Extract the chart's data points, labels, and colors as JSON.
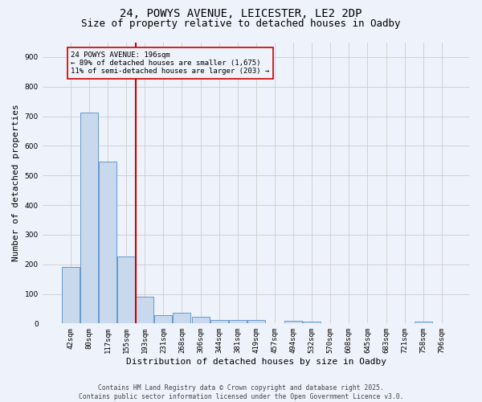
{
  "title_line1": "24, POWYS AVENUE, LEICESTER, LE2 2DP",
  "title_line2": "Size of property relative to detached houses in Oadby",
  "xlabel": "Distribution of detached houses by size in Oadby",
  "ylabel": "Number of detached properties",
  "bar_labels": [
    "42sqm",
    "80sqm",
    "117sqm",
    "155sqm",
    "193sqm",
    "231sqm",
    "268sqm",
    "306sqm",
    "344sqm",
    "381sqm",
    "419sqm",
    "457sqm",
    "494sqm",
    "532sqm",
    "570sqm",
    "608sqm",
    "645sqm",
    "683sqm",
    "721sqm",
    "758sqm",
    "796sqm"
  ],
  "bar_values": [
    190,
    713,
    548,
    225,
    90,
    27,
    36,
    22,
    12,
    11,
    11,
    2,
    9,
    6,
    2,
    0,
    0,
    0,
    0,
    5,
    0
  ],
  "bar_color": "#c9d9ed",
  "bar_edge_color": "#6699cc",
  "grid_color": "#cccccc",
  "vline_x": 3.5,
  "vline_color": "#cc0000",
  "annotation_text": "24 POWYS AVENUE: 196sqm\n← 89% of detached houses are smaller (1,675)\n11% of semi-detached houses are larger (203) →",
  "annotation_box_color": "#cc0000",
  "ylim": [
    0,
    950
  ],
  "yticks": [
    0,
    100,
    200,
    300,
    400,
    500,
    600,
    700,
    800,
    900
  ],
  "background_color": "#eef2fa",
  "footer_text": "Contains HM Land Registry data © Crown copyright and database right 2025.\nContains public sector information licensed under the Open Government Licence v3.0.",
  "title_fontsize": 10,
  "subtitle_fontsize": 9,
  "tick_fontsize": 6.5,
  "label_fontsize": 8,
  "annotation_fontsize": 6.5,
  "footer_fontsize": 5.8
}
